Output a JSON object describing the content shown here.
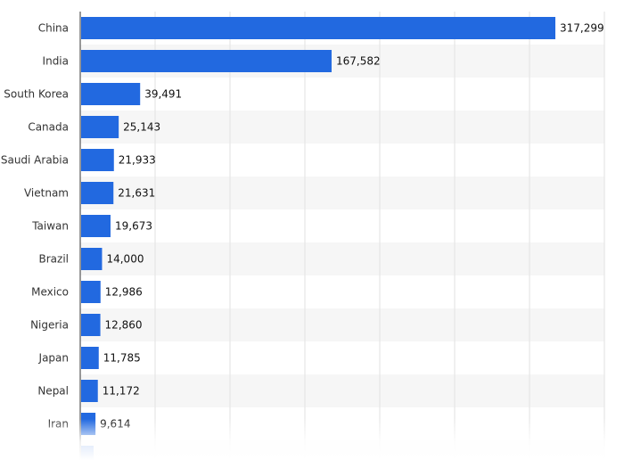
{
  "chart_data": {
    "type": "bar",
    "orientation": "horizontal",
    "categories": [
      "China",
      "India",
      "South Korea",
      "Canada",
      "Saudi Arabia",
      "Vietnam",
      "Taiwan",
      "Brazil",
      "Mexico",
      "Nigeria",
      "Japan",
      "Nepal",
      "Iran"
    ],
    "values": [
      317299,
      167582,
      39491,
      25143,
      21933,
      21631,
      19673,
      14000,
      12986,
      12860,
      11785,
      11172,
      9614
    ],
    "value_labels": [
      "317,299",
      "167,582",
      "39,491",
      "25,143",
      "21,933",
      "21,631",
      "19,673",
      "14,000",
      "12,986",
      "12,860",
      "11,785",
      "11,172",
      "9,614"
    ],
    "xlim": [
      0,
      350000
    ],
    "grid": true,
    "legend": "none",
    "title": "",
    "xlabel": "",
    "ylabel": ""
  },
  "colors": {
    "bar": "#2269e0",
    "grid": "#e2e2e2",
    "band": "#f6f6f6",
    "axis": "#333333"
  }
}
